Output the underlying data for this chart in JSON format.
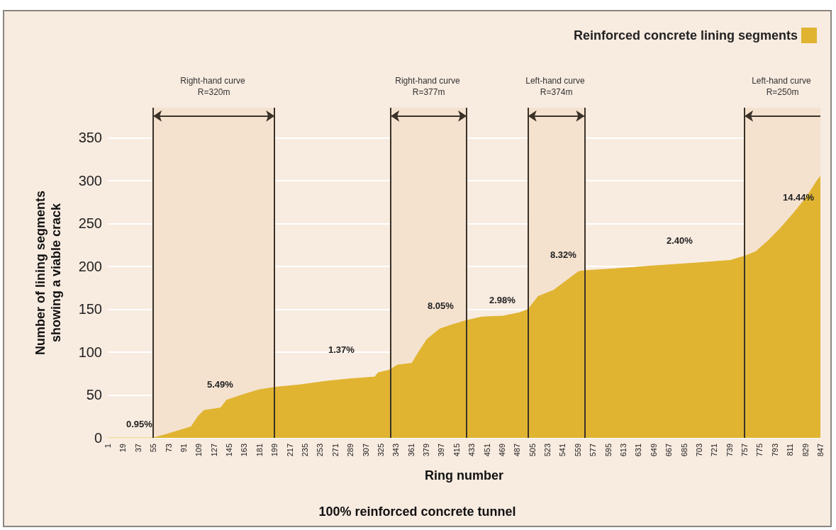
{
  "chart_data": {
    "type": "area",
    "title": "100% reinforced concrete tunnel",
    "xlabel": "Ring number",
    "ylabel": "Number of lining segments showing a viable crack",
    "x": [
      1,
      55,
      70,
      90,
      100,
      108,
      115,
      135,
      142,
      160,
      180,
      199,
      230,
      260,
      290,
      318,
      322,
      335,
      345,
      362,
      370,
      380,
      395,
      410,
      427,
      445,
      470,
      490,
      500,
      512,
      530,
      545,
      560,
      567,
      600,
      640,
      700,
      740,
      757,
      770,
      785,
      800,
      815,
      830,
      843,
      847
    ],
    "series": [
      {
        "name": "Reinforced concrete lining segments",
        "color": "#e0b431",
        "values": [
          0,
          0,
          4,
          10,
          13,
          25,
          32,
          35,
          44,
          50,
          56,
          59,
          62,
          66,
          69,
          71,
          76,
          79,
          85,
          87,
          100,
          115,
          127,
          132,
          137,
          141,
          142,
          146,
          150,
          165,
          172,
          183,
          194,
          195,
          197,
          200,
          204,
          207,
          212,
          217,
          230,
          245,
          262,
          280,
          300,
          305
        ]
      }
    ],
    "xlim": [
      1,
      847
    ],
    "xticks": [
      1,
      19,
      37,
      55,
      73,
      91,
      109,
      127,
      145,
      163,
      181,
      199,
      217,
      235,
      253,
      271,
      289,
      307,
      325,
      343,
      361,
      379,
      397,
      415,
      433,
      451,
      469,
      487,
      505,
      523,
      541,
      559,
      577,
      595,
      613,
      631,
      649,
      667,
      685,
      703,
      721,
      739,
      757,
      775,
      793,
      811,
      829,
      847
    ],
    "ylim": [
      0,
      385
    ],
    "yticks": [
      0,
      50,
      100,
      150,
      200,
      250,
      300,
      350
    ],
    "grid": "y",
    "legend": "top right",
    "ref_lines": [
      {
        "axis": "x",
        "value": 55,
        "color": "#3a3228"
      },
      {
        "axis": "x",
        "value": 199,
        "color": "#3a3228"
      },
      {
        "axis": "x",
        "value": 337,
        "color": "#3a3228"
      },
      {
        "axis": "x",
        "value": 427,
        "color": "#3a3228"
      },
      {
        "axis": "x",
        "value": 500,
        "color": "#3a3228"
      },
      {
        "axis": "x",
        "value": 567,
        "color": "#3a3228"
      },
      {
        "axis": "x",
        "value": 757,
        "color": "#3a3228"
      }
    ],
    "bands": [
      {
        "axis": "x",
        "from": 55,
        "to": 199,
        "label": "Right-hand curve R=320m",
        "color": "#f4e2cf"
      },
      {
        "axis": "x",
        "from": 337,
        "to": 427,
        "label": "Right-hand curve R=377m",
        "color": "#f4e2cf"
      },
      {
        "axis": "x",
        "from": 500,
        "to": 567,
        "label": "Left-hand curve R=374m",
        "color": "#f4e2cf"
      },
      {
        "axis": "x",
        "from": 757,
        "to": 847,
        "label": "Left-hand curve R=250m",
        "color": "#f4e2cf"
      }
    ],
    "annotations": [
      "0.95%",
      "5.49%",
      "1.37%",
      "8.05%",
      "2.98%",
      "8.32%",
      "2.40%",
      "14.44%"
    ]
  }
}
